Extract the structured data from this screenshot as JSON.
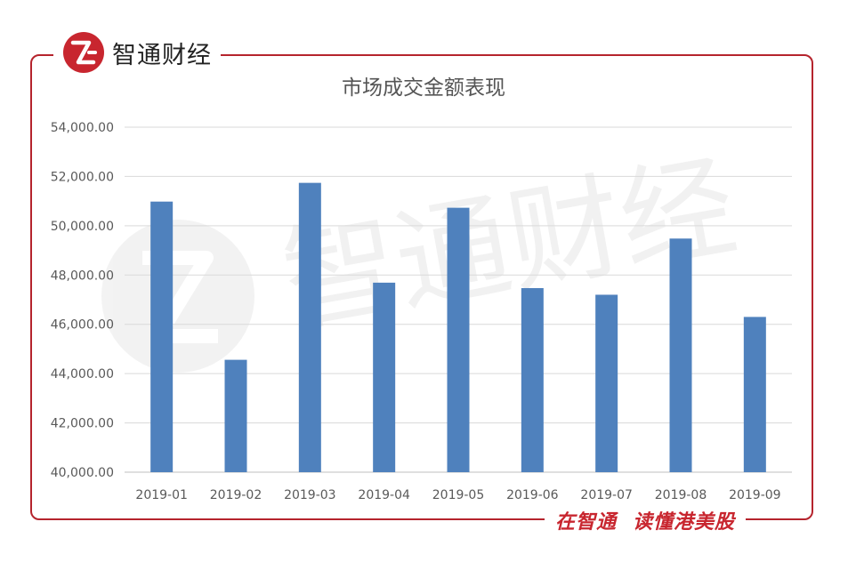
{
  "brand": {
    "name": "智通财经",
    "logo_icon": "zhitong-logo-icon",
    "slogan_a": "在智通",
    "slogan_b": "读懂港美股",
    "accent": "#b5242d"
  },
  "watermark": "智通财经",
  "chart_data": {
    "type": "bar",
    "title": "市场成交金额表现",
    "xlabel": "",
    "ylabel": "",
    "categories": [
      "2019-01",
      "2019-02",
      "2019-03",
      "2019-04",
      "2019-05",
      "2019-06",
      "2019-07",
      "2019-08",
      "2019-09"
    ],
    "values": [
      50980,
      44560,
      51740,
      47690,
      50730,
      47470,
      47200,
      49480,
      46300
    ],
    "ylim": [
      40000,
      54000
    ],
    "yticks": [
      40000,
      42000,
      44000,
      46000,
      48000,
      50000,
      52000,
      54000
    ],
    "ytick_labels": [
      "40,000.00",
      "42,000.00",
      "44,000.00",
      "46,000.00",
      "48,000.00",
      "50,000.00",
      "52,000.00",
      "54,000.00"
    ],
    "grid": true,
    "legend": "none",
    "bar_color": "#4f81bd"
  }
}
